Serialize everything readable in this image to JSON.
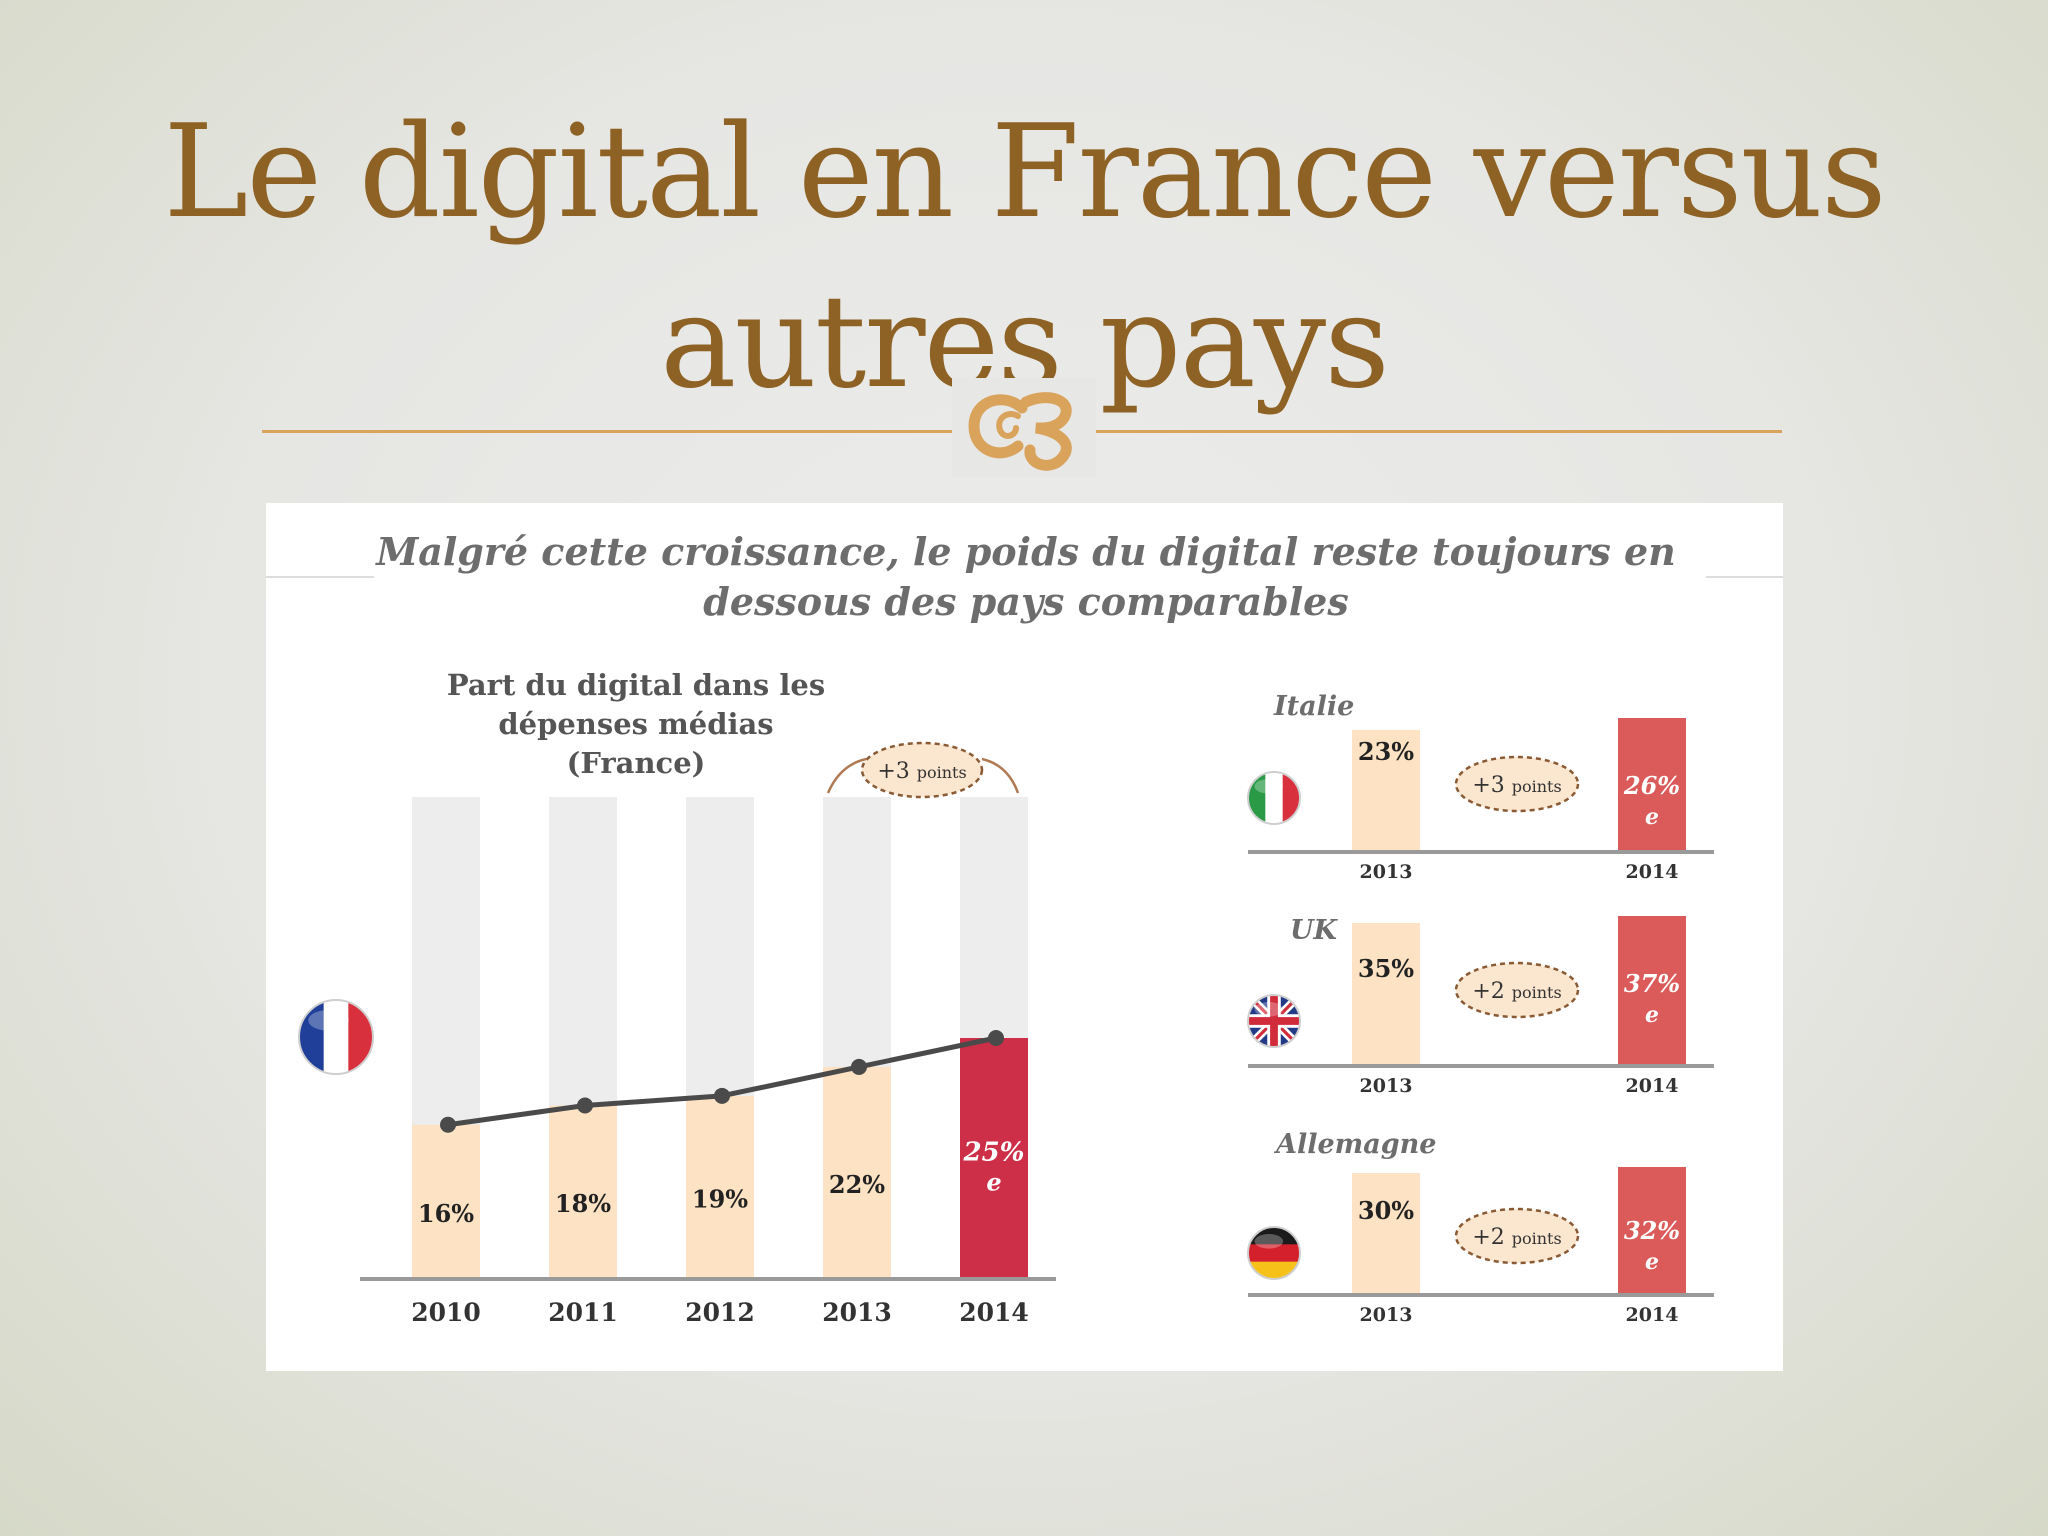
{
  "slide": {
    "title_line1": "Le digital en France versus",
    "title_line2": "autres pays"
  },
  "colors": {
    "title": "#8e6224",
    "accent_line": "#d9a35c",
    "bar_past": "#fde2c4",
    "bar_current_france": "#cd2e48",
    "bar_current_other": "#db5b5b",
    "bar_background": "#ededee",
    "line": "#4a4a4a"
  },
  "card": {
    "subtitle_line1": "Malgré cette croissance, le poids du digital reste toujours en",
    "subtitle_line2": "dessous des pays comparables"
  },
  "chart_data": [
    {
      "type": "bar",
      "country": "France",
      "flag": "france-flag",
      "title_line1": "Part du digital dans les dépenses médias",
      "title_line2": "(France)",
      "categories": [
        "2010",
        "2011",
        "2012",
        "2013",
        "2014"
      ],
      "values": [
        16,
        18,
        19,
        22,
        25
      ],
      "data_labels": [
        "16%",
        "18%",
        "19%",
        "22%",
        "25%"
      ],
      "estimate_marker": "e",
      "line_overlay": true,
      "ylim": [
        0,
        50
      ],
      "annotation": {
        "value": "+3",
        "unit": "points"
      }
    },
    {
      "type": "bar",
      "country": "Italie",
      "flag": "italy-flag",
      "categories": [
        "2013",
        "2014"
      ],
      "values": [
        23,
        26
      ],
      "data_labels": [
        "23%",
        "26%"
      ],
      "estimate_marker": "e",
      "annotation": {
        "value": "+3",
        "unit": "points"
      }
    },
    {
      "type": "bar",
      "country": "UK",
      "flag": "uk-flag",
      "categories": [
        "2013",
        "2014"
      ],
      "values": [
        35,
        37
      ],
      "data_labels": [
        "35%",
        "37%"
      ],
      "estimate_marker": "e",
      "annotation": {
        "value": "+2",
        "unit": "points"
      }
    },
    {
      "type": "bar",
      "country": "Allemagne",
      "flag": "germany-flag",
      "categories": [
        "2013",
        "2014"
      ],
      "values": [
        30,
        32
      ],
      "data_labels": [
        "30%",
        "32%"
      ],
      "estimate_marker": "e",
      "annotation": {
        "value": "+2",
        "unit": "points"
      }
    }
  ]
}
